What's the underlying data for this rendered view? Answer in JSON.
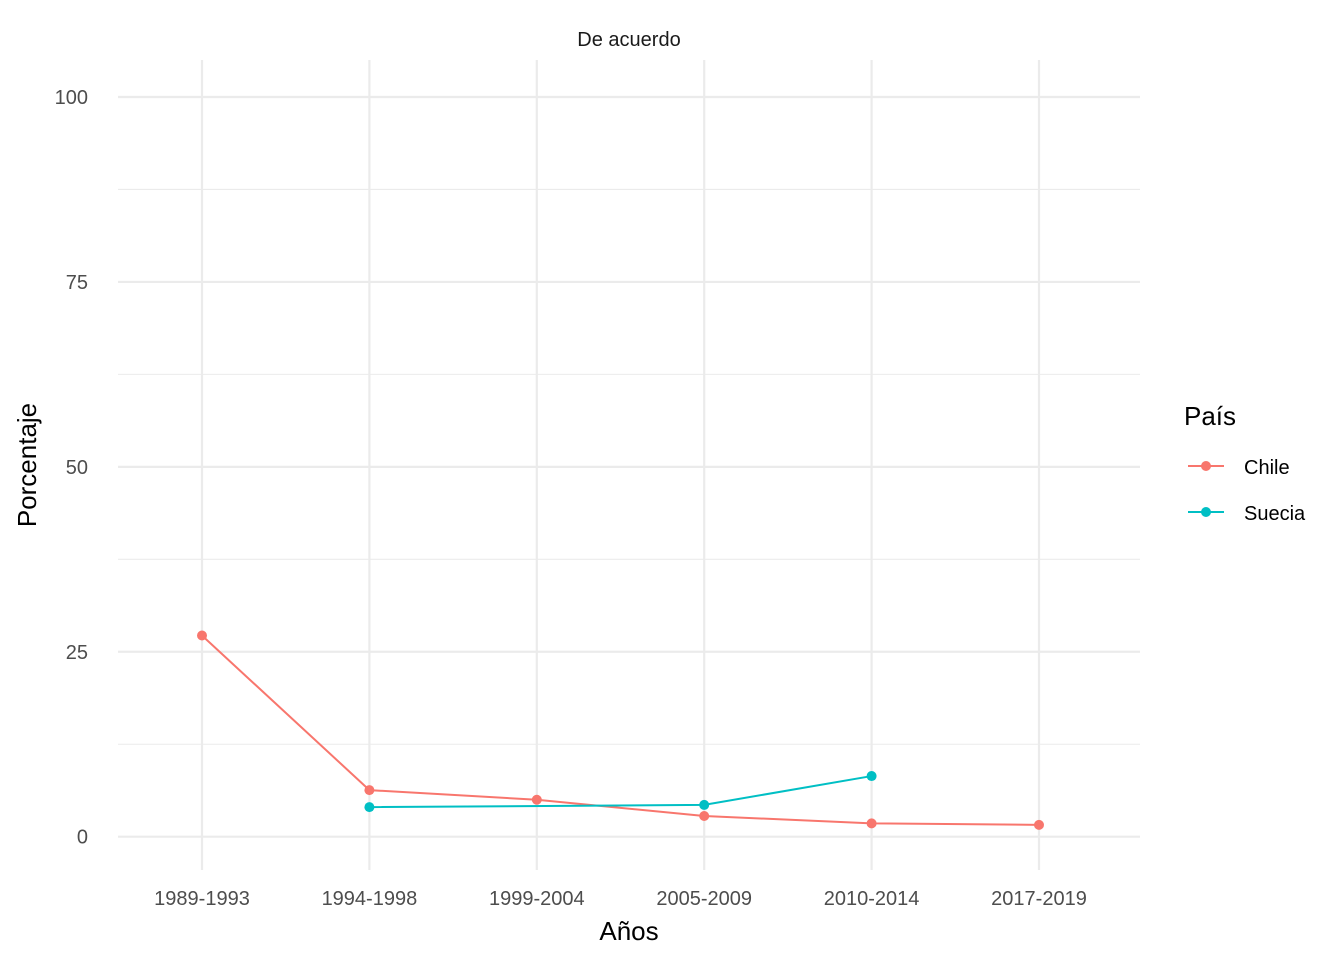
{
  "chart_data": {
    "type": "line",
    "title": "De acuerdo",
    "xlabel": "Años",
    "ylabel": "Porcentaje",
    "categories": [
      "1989-1993",
      "1994-1998",
      "1999-2004",
      "2005-2009",
      "2010-2014",
      "2017-2019"
    ],
    "ylim": [
      -4.5,
      105
    ],
    "yticks": [
      0,
      25,
      50,
      75,
      100
    ],
    "grid": true,
    "legend": {
      "title": "País",
      "placement": "right"
    },
    "series": [
      {
        "name": "Chile",
        "color": "#F8766D",
        "values": [
          27.2,
          6.3,
          5.0,
          2.8,
          1.8,
          1.6
        ]
      },
      {
        "name": "Suecia",
        "color": "#00BFC4",
        "values": [
          null,
          4.0,
          null,
          4.3,
          8.2,
          null
        ]
      }
    ]
  }
}
